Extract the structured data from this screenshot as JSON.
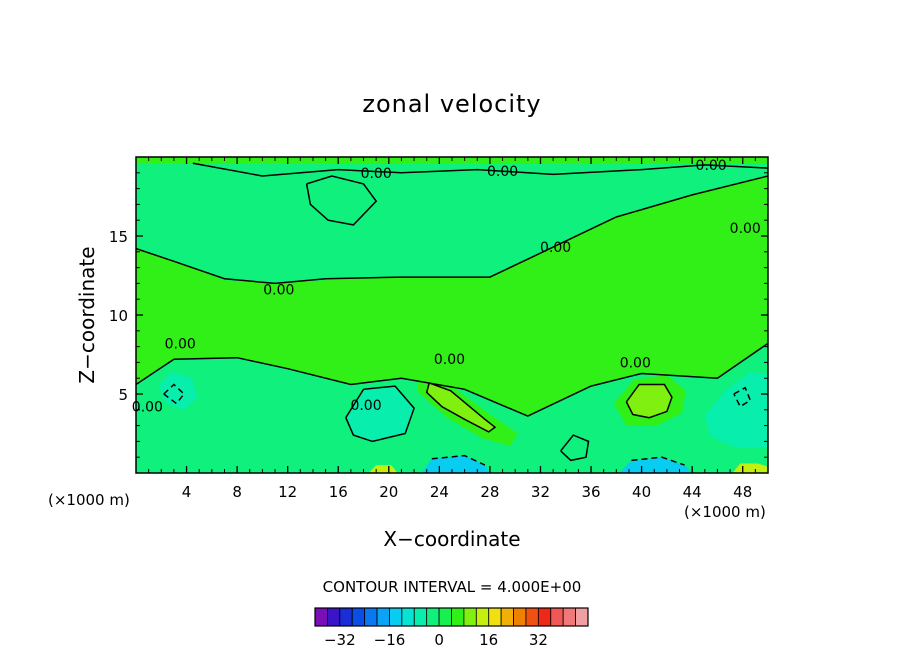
{
  "chart_data": {
    "type": "contour",
    "title": "zonal velocity",
    "xlabel": "X−coordinate",
    "ylabel": "Z−coordinate",
    "x_unit_left": "(×1000 m)",
    "x_unit_right": "(×1000 m)",
    "xlim": [
      0,
      50
    ],
    "ylim": [
      0,
      20
    ],
    "x_ticks": [
      4,
      8,
      12,
      16,
      20,
      24,
      28,
      32,
      36,
      40,
      44,
      48
    ],
    "x_tick_labels": [
      "4",
      "8",
      "12",
      "16",
      "20",
      "24",
      "28",
      "32",
      "36",
      "40",
      "44",
      "48"
    ],
    "y_ticks": [
      5,
      10,
      15
    ],
    "y_tick_labels": [
      "5",
      "10",
      "15"
    ],
    "contour_interval_text": "CONTOUR INTERVAL = 4.000E+00",
    "contour_labels": [
      {
        "text": "0.00",
        "x": 19.0,
        "y": 19.0
      },
      {
        "text": "0.00",
        "x": 29.0,
        "y": 19.1
      },
      {
        "text": "0.00",
        "x": 45.5,
        "y": 19.5
      },
      {
        "text": "0.00",
        "x": 48.2,
        "y": 15.5
      },
      {
        "text": "0.00",
        "x": 33.2,
        "y": 14.3
      },
      {
        "text": "0.00",
        "x": 11.3,
        "y": 11.6
      },
      {
        "text": "0.00",
        "x": 3.5,
        "y": 8.2
      },
      {
        "text": "0.00",
        "x": 24.8,
        "y": 7.2
      },
      {
        "text": "0.00",
        "x": 39.5,
        "y": 7.0
      },
      {
        "text": "0.00",
        "x": 18.2,
        "y": 4.3
      },
      {
        "text": "0.00",
        "x": 0.9,
        "y": 4.2
      }
    ],
    "colorbar": {
      "tick_values": [
        -32,
        -16,
        0,
        16,
        32
      ],
      "tick_labels": [
        "−32",
        "−16",
        "0",
        "16",
        "32"
      ],
      "colors": [
        "#7a0fb8",
        "#3a14c8",
        "#1a2ed8",
        "#0a4ee8",
        "#0a78f0",
        "#0aa4f4",
        "#08ccf0",
        "#08e4d4",
        "#08eeac",
        "#10f07c",
        "#18f050",
        "#30f018",
        "#80f010",
        "#c4f010",
        "#f0e010",
        "#f0b008",
        "#f08000",
        "#f05010",
        "#f02818",
        "#f05858",
        "#f07878",
        "#f0a0a0"
      ]
    },
    "fields": [
      {
        "name": "lower-band",
        "color": "#10f07c",
        "polygon": [
          [
            0,
            0
          ],
          [
            0,
            5.6
          ],
          [
            3,
            7.2
          ],
          [
            8,
            7.3
          ],
          [
            12,
            6.6
          ],
          [
            17,
            5.6
          ],
          [
            21,
            6.0
          ],
          [
            26,
            5.3
          ],
          [
            31,
            3.6
          ],
          [
            36,
            5.5
          ],
          [
            40,
            6.3
          ],
          [
            46,
            6.0
          ],
          [
            50,
            8.2
          ],
          [
            50,
            0
          ]
        ]
      },
      {
        "name": "upper-band",
        "color": "#10f07c",
        "polygon": [
          [
            0,
            19.6
          ],
          [
            50,
            19.6
          ],
          [
            50,
            18.8
          ],
          [
            44,
            17.6
          ],
          [
            38,
            16.2
          ],
          [
            33,
            14.3
          ],
          [
            28,
            12.4
          ],
          [
            21,
            12.4
          ],
          [
            15,
            12.2
          ],
          [
            11,
            12.0
          ],
          [
            7,
            12.2
          ],
          [
            3,
            13.4
          ],
          [
            0,
            14.3
          ]
        ]
      },
      {
        "name": "upper-left-blob",
        "color": "#10f07c",
        "polygon": [
          [
            13.5,
            18.3
          ],
          [
            15.5,
            18.8
          ],
          [
            18,
            18.3
          ],
          [
            19,
            17.2
          ],
          [
            17.2,
            15.7
          ],
          [
            15.2,
            16.0
          ],
          [
            13.8,
            17.0
          ]
        ]
      },
      {
        "name": "lower-left-band",
        "color": "#08eeac",
        "polygon": [
          [
            1.8,
            5.5
          ],
          [
            2.8,
            6.4
          ],
          [
            4.4,
            6.0
          ],
          [
            4.9,
            4.8
          ],
          [
            3.8,
            4.0
          ],
          [
            2.4,
            4.4
          ]
        ]
      },
      {
        "name": "mid-left-band",
        "color": "#08eeac",
        "polygon": [
          [
            16.6,
            3.5
          ],
          [
            18.0,
            5.3
          ],
          [
            20.5,
            5.5
          ],
          [
            22.0,
            4.1
          ],
          [
            21.3,
            2.5
          ],
          [
            18.7,
            2.0
          ],
          [
            17.2,
            2.4
          ]
        ]
      },
      {
        "name": "center-light",
        "color": "#30f018",
        "polygon": [
          [
            22.4,
            6.0
          ],
          [
            24.8,
            5.6
          ],
          [
            28.2,
            3.6
          ],
          [
            30.2,
            2.5
          ],
          [
            29.6,
            1.7
          ],
          [
            27.4,
            2.2
          ],
          [
            24.6,
            3.5
          ],
          [
            22.2,
            5.2
          ]
        ]
      },
      {
        "name": "center-core",
        "color": "#80f010",
        "polygon": [
          [
            23.2,
            5.7
          ],
          [
            24.9,
            5.2
          ],
          [
            27.6,
            3.4
          ],
          [
            28.4,
            2.9
          ],
          [
            27.9,
            2.6
          ],
          [
            26.0,
            3.4
          ],
          [
            24.2,
            4.2
          ],
          [
            23.0,
            5.1
          ]
        ]
      },
      {
        "name": "right-light",
        "color": "#30f018",
        "polygon": [
          [
            37.8,
            4.4
          ],
          [
            39.4,
            5.9
          ],
          [
            42.0,
            6.2
          ],
          [
            43.5,
            5.2
          ],
          [
            43.2,
            3.8
          ],
          [
            41.2,
            3.0
          ],
          [
            38.8,
            3.0
          ]
        ]
      },
      {
        "name": "right-core",
        "color": "#80f010",
        "polygon": [
          [
            38.8,
            4.5
          ],
          [
            39.8,
            5.6
          ],
          [
            41.8,
            5.6
          ],
          [
            42.4,
            4.8
          ],
          [
            42.0,
            3.9
          ],
          [
            40.6,
            3.5
          ],
          [
            39.3,
            3.7
          ]
        ]
      },
      {
        "name": "far-right-band",
        "color": "#08eeac",
        "polygon": [
          [
            45.0,
            3.6
          ],
          [
            46.6,
            5.2
          ],
          [
            48.6,
            6.4
          ],
          [
            50,
            6.2
          ],
          [
            50,
            1.6
          ],
          [
            47.5,
            1.6
          ],
          [
            45.5,
            2.3
          ]
        ]
      },
      {
        "name": "bottom-left-cyan",
        "color": "#08ccf0",
        "polygon": [
          [
            22.6,
            0
          ],
          [
            23.4,
            0.9
          ],
          [
            26.0,
            1.1
          ],
          [
            27.6,
            0.5
          ],
          [
            28.0,
            0
          ]
        ]
      },
      {
        "name": "bottom-right-cyan",
        "color": "#08ccf0",
        "polygon": [
          [
            38.2,
            0
          ],
          [
            39.2,
            0.8
          ],
          [
            41.6,
            1.0
          ],
          [
            43.4,
            0.5
          ],
          [
            44.0,
            0
          ]
        ]
      },
      {
        "name": "bottom-right-yellow",
        "color": "#c4f010",
        "polygon": [
          [
            47.2,
            0
          ],
          [
            47.8,
            0.6
          ],
          [
            49.2,
            0.6
          ],
          [
            50,
            0.4
          ],
          [
            50,
            0
          ]
        ]
      },
      {
        "name": "bottom-mid-yellow",
        "color": "#c4f010",
        "polygon": [
          [
            18.4,
            0
          ],
          [
            19.0,
            0.5
          ],
          [
            20.2,
            0.5
          ],
          [
            20.7,
            0
          ]
        ]
      }
    ],
    "contours": [
      {
        "name": "zero-contour-upper",
        "dashed": false,
        "points": [
          [
            0,
            14.2
          ],
          [
            3,
            13.4
          ],
          [
            7,
            12.3
          ],
          [
            11,
            12.0
          ],
          [
            15,
            12.3
          ],
          [
            21,
            12.4
          ],
          [
            28,
            12.4
          ],
          [
            33,
            14.3
          ],
          [
            38,
            16.2
          ],
          [
            44,
            17.6
          ],
          [
            50,
            18.8
          ]
        ]
      },
      {
        "name": "zero-contour-lower",
        "dashed": false,
        "points": [
          [
            0,
            5.6
          ],
          [
            3,
            7.2
          ],
          [
            8,
            7.3
          ],
          [
            12,
            6.6
          ],
          [
            17,
            5.6
          ],
          [
            21,
            6.0
          ],
          [
            26,
            5.3
          ],
          [
            31,
            3.6
          ],
          [
            36,
            5.5
          ],
          [
            40,
            6.3
          ],
          [
            46,
            6.0
          ],
          [
            50,
            8.2
          ]
        ]
      },
      {
        "name": "upper-blob-contour",
        "dashed": false,
        "points": [
          [
            13.5,
            18.3
          ],
          [
            15.5,
            18.8
          ],
          [
            18,
            18.3
          ],
          [
            19,
            17.2
          ],
          [
            17.2,
            15.7
          ],
          [
            15.2,
            16.0
          ],
          [
            13.8,
            17.0
          ],
          [
            13.5,
            18.3
          ]
        ]
      },
      {
        "name": "top-contour",
        "dashed": false,
        "points": [
          [
            4.5,
            19.6
          ],
          [
            10,
            18.8
          ],
          [
            16,
            19.2
          ],
          [
            21,
            19.0
          ],
          [
            27,
            19.2
          ],
          [
            33,
            18.9
          ],
          [
            40,
            19.2
          ],
          [
            45,
            19.5
          ],
          [
            50,
            19.3
          ]
        ]
      },
      {
        "name": "center-contour",
        "dashed": false,
        "points": [
          [
            23.2,
            5.7
          ],
          [
            24.9,
            5.2
          ],
          [
            27.6,
            3.4
          ],
          [
            28.4,
            2.9
          ],
          [
            27.9,
            2.6
          ],
          [
            26.0,
            3.4
          ],
          [
            24.2,
            4.2
          ],
          [
            23.0,
            5.1
          ],
          [
            23.2,
            5.7
          ]
        ]
      },
      {
        "name": "right-contour",
        "dashed": false,
        "points": [
          [
            38.8,
            4.5
          ],
          [
            39.8,
            5.6
          ],
          [
            41.8,
            5.6
          ],
          [
            42.4,
            4.8
          ],
          [
            42.0,
            3.9
          ],
          [
            40.6,
            3.5
          ],
          [
            39.3,
            3.7
          ],
          [
            38.8,
            4.5
          ]
        ]
      },
      {
        "name": "left-dash",
        "dashed": true,
        "points": [
          [
            2.2,
            5.0
          ],
          [
            3.0,
            5.6
          ],
          [
            3.8,
            5.0
          ],
          [
            3.2,
            4.4
          ],
          [
            2.2,
            5.0
          ]
        ]
      },
      {
        "name": "right-dash",
        "dashed": true,
        "points": [
          [
            47.3,
            5.0
          ],
          [
            48.2,
            5.4
          ],
          [
            48.6,
            4.6
          ],
          [
            47.8,
            4.2
          ],
          [
            47.3,
            5.0
          ]
        ]
      },
      {
        "name": "bottom-left-dash",
        "dashed": true,
        "points": [
          [
            23.4,
            0.9
          ],
          [
            26.0,
            1.1
          ],
          [
            27.6,
            0.5
          ]
        ]
      },
      {
        "name": "bottom-right-dash",
        "dashed": true,
        "points": [
          [
            39.2,
            0.8
          ],
          [
            41.6,
            1.0
          ],
          [
            43.4,
            0.5
          ]
        ]
      },
      {
        "name": "small-loop-right",
        "dashed": false,
        "points": [
          [
            33.6,
            1.4
          ],
          [
            34.6,
            2.4
          ],
          [
            35.8,
            2.0
          ],
          [
            35.6,
            1.0
          ],
          [
            34.4,
            0.8
          ],
          [
            33.6,
            1.4
          ]
        ]
      },
      {
        "name": "mid-left-contour",
        "dashed": false,
        "points": [
          [
            16.6,
            3.5
          ],
          [
            18.0,
            5.3
          ],
          [
            20.5,
            5.5
          ],
          [
            22.0,
            4.1
          ],
          [
            21.3,
            2.5
          ],
          [
            18.7,
            2.0
          ],
          [
            17.2,
            2.4
          ],
          [
            16.6,
            3.5
          ]
        ]
      }
    ]
  }
}
